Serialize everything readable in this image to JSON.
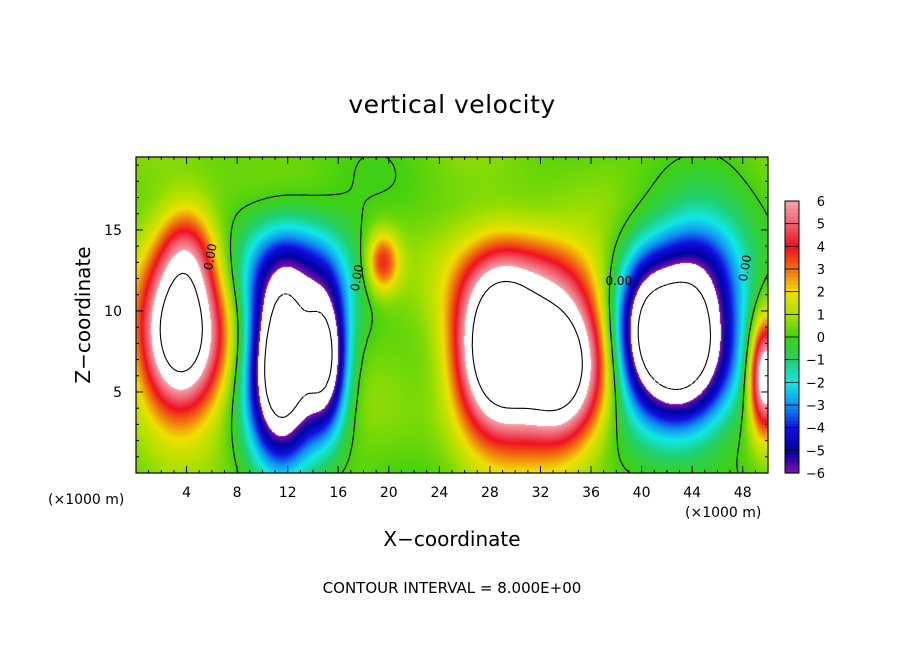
{
  "chart_data": {
    "type": "heatmap",
    "title": "vertical velocity",
    "xlabel": "X−coordinate",
    "ylabel": "Z−coordinate",
    "x_unit_label": "(×1000 m)",
    "xlim": [
      0,
      50
    ],
    "ylim": [
      0,
      19.5
    ],
    "x_ticks": [
      4,
      8,
      12,
      16,
      20,
      24,
      28,
      32,
      36,
      40,
      44,
      48
    ],
    "y_ticks": [
      5,
      10,
      15
    ],
    "colorbar": {
      "range": [
        -6,
        6
      ],
      "ticks": [
        "6",
        "5",
        "4",
        "3",
        "2",
        "1",
        "0",
        "−1",
        "−2",
        "−3",
        "−4",
        "−5",
        "−6"
      ],
      "colors": [
        {
          "value": 6,
          "color": "#f7a0a8"
        },
        {
          "value": 5,
          "color": "#f06070"
        },
        {
          "value": 4,
          "color": "#f01020"
        },
        {
          "value": 3,
          "color": "#f07010"
        },
        {
          "value": 2,
          "color": "#f0e000"
        },
        {
          "value": 1,
          "color": "#a8e000"
        },
        {
          "value": 0,
          "color": "#40d010"
        },
        {
          "value": -1,
          "color": "#20d070"
        },
        {
          "value": -2,
          "color": "#10e8e8"
        },
        {
          "value": -3,
          "color": "#1090f0"
        },
        {
          "value": -4,
          "color": "#1010e0"
        },
        {
          "value": -5,
          "color": "#0000a0"
        },
        {
          "value": -6,
          "color": "#8010b0"
        }
      ]
    },
    "contour_labels": [
      "0.00",
      "0.00",
      "0.00",
      "0.00"
    ],
    "updrafts": [
      {
        "x": 3.5,
        "z": 8.5,
        "amplitude": 10,
        "sx": 2.2,
        "sz": 3.2
      },
      {
        "x": 4.0,
        "z": 13.5,
        "amplitude": 3.5,
        "sx": 1.6,
        "sz": 2.2
      },
      {
        "x": 19.5,
        "z": 13.0,
        "amplitude": 3.5,
        "sx": 0.9,
        "sz": 1.3
      },
      {
        "x": 28.5,
        "z": 7.5,
        "amplitude": 11,
        "sx": 2.2,
        "sz": 3.4
      },
      {
        "x": 33.5,
        "z": 6.5,
        "amplitude": 10,
        "sx": 2.4,
        "sz": 3.2
      },
      {
        "x": 31.0,
        "z": 12.0,
        "amplitude": 3,
        "sx": 3.5,
        "sz": 2.2
      },
      {
        "x": 49.8,
        "z": 6.0,
        "amplitude": 8,
        "sx": 0.9,
        "sz": 2.4
      }
    ],
    "downdrafts": [
      {
        "x": 11.5,
        "z": 6.5,
        "amplitude": -11,
        "sx": 1.8,
        "sz": 3.8
      },
      {
        "x": 15.0,
        "z": 7.0,
        "amplitude": -8,
        "sx": 1.2,
        "sz": 3.0
      },
      {
        "x": 12.5,
        "z": 12.5,
        "amplitude": -3.5,
        "sx": 3.2,
        "sz": 2.4
      },
      {
        "x": 43.0,
        "z": 7.5,
        "amplitude": -11,
        "sx": 2.8,
        "sz": 3.2
      },
      {
        "x": 44.5,
        "z": 12.5,
        "amplitude": -4,
        "sx": 3.0,
        "sz": 2.6
      },
      {
        "x": 40.0,
        "z": 9.5,
        "amplitude": -3,
        "sx": 1.5,
        "sz": 3.0
      }
    ],
    "note": "CONTOUR INTERVAL = 8.000E+00"
  }
}
